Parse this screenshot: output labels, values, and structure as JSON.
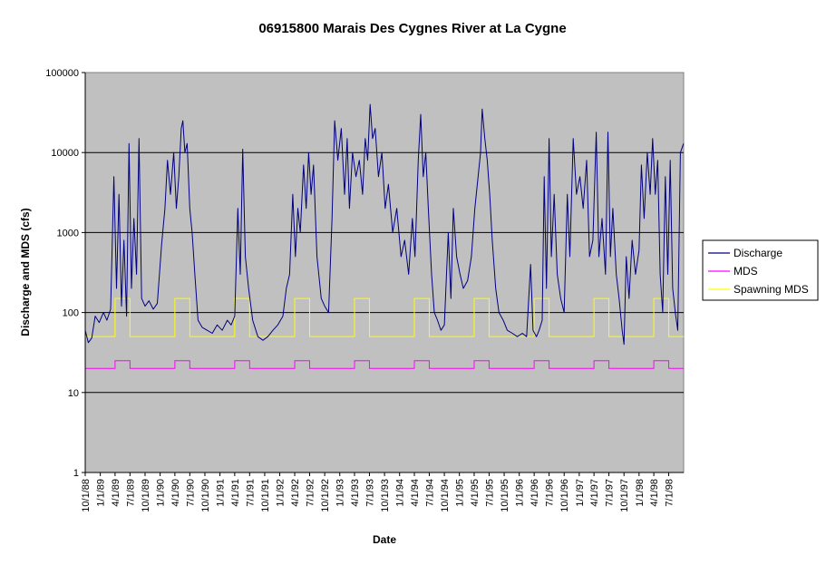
{
  "chart_data": {
    "type": "line",
    "title": "06915800 Marais Des Cygnes River at La Cygne",
    "xlabel": "Date",
    "ylabel": "Discharge and MDS (cfs)",
    "yscale": "log",
    "ylim": [
      1,
      100000
    ],
    "y_ticks": [
      "1",
      "10",
      "100",
      "1000",
      "10000",
      "100000"
    ],
    "x_range": [
      "1988-10-01",
      "1998-09-30"
    ],
    "x_tick_labels": [
      "10/1/88",
      "1/1/89",
      "4/1/89",
      "7/1/89",
      "10/1/89",
      "1/1/90",
      "4/1/90",
      "7/1/90",
      "10/1/90",
      "1/1/91",
      "4/1/91",
      "7/1/91",
      "10/1/91",
      "1/1/92",
      "4/1/92",
      "7/1/92",
      "10/1/92",
      "1/1/93",
      "4/1/93",
      "7/1/93",
      "10/1/93",
      "1/1/94",
      "4/1/94",
      "7/1/94",
      "10/1/94",
      "1/1/95",
      "4/1/95",
      "7/1/95",
      "10/1/95",
      "1/1/96",
      "4/1/96",
      "7/1/96",
      "10/1/96",
      "1/1/97",
      "4/1/97",
      "7/1/97",
      "10/1/97",
      "1/1/98",
      "4/1/98",
      "7/1/98"
    ],
    "grid": "horizontal major",
    "plot_background": "#c0c0c0",
    "legend_position": "right",
    "series": [
      {
        "name": "Discharge",
        "color": "#000080",
        "points": [
          [
            "1988-10-01",
            60
          ],
          [
            "1988-10-20",
            42
          ],
          [
            "1988-11-10",
            48
          ],
          [
            "1988-12-01",
            90
          ],
          [
            "1988-12-25",
            75
          ],
          [
            "1989-01-20",
            100
          ],
          [
            "1989-02-10",
            80
          ],
          [
            "1989-03-05",
            110
          ],
          [
            "1989-03-25",
            5000
          ],
          [
            "1989-04-10",
            200
          ],
          [
            "1989-04-25",
            3000
          ],
          [
            "1989-05-10",
            120
          ],
          [
            "1989-05-25",
            800
          ],
          [
            "1989-06-10",
            90
          ],
          [
            "1989-06-25",
            13000
          ],
          [
            "1989-07-10",
            200
          ],
          [
            "1989-07-25",
            1500
          ],
          [
            "1989-08-10",
            300
          ],
          [
            "1989-08-25",
            15000
          ],
          [
            "1989-09-10",
            150
          ],
          [
            "1989-10-01",
            120
          ],
          [
            "1989-10-25",
            140
          ],
          [
            "1989-11-20",
            110
          ],
          [
            "1989-12-15",
            130
          ],
          [
            "1990-01-10",
            700
          ],
          [
            "1990-01-30",
            2000
          ],
          [
            "1990-02-15",
            8000
          ],
          [
            "1990-03-05",
            3000
          ],
          [
            "1990-03-25",
            10000
          ],
          [
            "1990-04-10",
            2000
          ],
          [
            "1990-04-25",
            5000
          ],
          [
            "1990-05-10",
            20000
          ],
          [
            "1990-05-20",
            25000
          ],
          [
            "1990-06-01",
            10000
          ],
          [
            "1990-06-15",
            13000
          ],
          [
            "1990-07-01",
            2000
          ],
          [
            "1990-07-15",
            1000
          ],
          [
            "1990-08-01",
            300
          ],
          [
            "1990-08-20",
            80
          ],
          [
            "1990-09-15",
            65
          ],
          [
            "1990-10-15",
            60
          ],
          [
            "1990-11-15",
            55
          ],
          [
            "1990-12-15",
            70
          ],
          [
            "1991-01-15",
            60
          ],
          [
            "1991-02-15",
            80
          ],
          [
            "1991-03-10",
            70
          ],
          [
            "1991-04-01",
            90
          ],
          [
            "1991-04-20",
            2000
          ],
          [
            "1991-05-05",
            300
          ],
          [
            "1991-05-20",
            11000
          ],
          [
            "1991-06-05",
            500
          ],
          [
            "1991-06-25",
            200
          ],
          [
            "1991-07-20",
            80
          ],
          [
            "1991-08-20",
            50
          ],
          [
            "1991-09-20",
            45
          ],
          [
            "1991-10-20",
            50
          ],
          [
            "1991-11-20",
            60
          ],
          [
            "1991-12-20",
            70
          ],
          [
            "1992-01-20",
            90
          ],
          [
            "1992-02-10",
            200
          ],
          [
            "1992-03-01",
            300
          ],
          [
            "1992-03-20",
            3000
          ],
          [
            "1992-04-05",
            500
          ],
          [
            "1992-04-20",
            2000
          ],
          [
            "1992-05-05",
            1000
          ],
          [
            "1992-05-25",
            7000
          ],
          [
            "1992-06-10",
            2000
          ],
          [
            "1992-06-25",
            10000
          ],
          [
            "1992-07-10",
            3000
          ],
          [
            "1992-07-25",
            7000
          ],
          [
            "1992-08-15",
            500
          ],
          [
            "1992-09-10",
            150
          ],
          [
            "1992-10-01",
            120
          ],
          [
            "1992-10-25",
            100
          ],
          [
            "1992-11-15",
            1500
          ],
          [
            "1992-12-01",
            25000
          ],
          [
            "1992-12-20",
            8000
          ],
          [
            "1993-01-10",
            20000
          ],
          [
            "1993-01-30",
            3000
          ],
          [
            "1993-02-15",
            15000
          ],
          [
            "1993-03-01",
            2000
          ],
          [
            "1993-03-20",
            10000
          ],
          [
            "1993-04-10",
            5000
          ],
          [
            "1993-04-30",
            8000
          ],
          [
            "1993-05-20",
            3000
          ],
          [
            "1993-06-05",
            15000
          ],
          [
            "1993-06-20",
            8000
          ],
          [
            "1993-07-05",
            40000
          ],
          [
            "1993-07-20",
            15000
          ],
          [
            "1993-08-05",
            20000
          ],
          [
            "1993-08-25",
            5000
          ],
          [
            "1993-09-15",
            10000
          ],
          [
            "1993-10-05",
            2000
          ],
          [
            "1993-10-25",
            4000
          ],
          [
            "1993-11-20",
            1000
          ],
          [
            "1993-12-15",
            2000
          ],
          [
            "1994-01-10",
            500
          ],
          [
            "1994-02-01",
            800
          ],
          [
            "1994-02-25",
            300
          ],
          [
            "1994-03-20",
            1500
          ],
          [
            "1994-04-05",
            500
          ],
          [
            "1994-04-25",
            8000
          ],
          [
            "1994-05-10",
            30000
          ],
          [
            "1994-05-25",
            5000
          ],
          [
            "1994-06-10",
            10000
          ],
          [
            "1994-06-25",
            2000
          ],
          [
            "1994-07-15",
            300
          ],
          [
            "1994-08-01",
            100
          ],
          [
            "1994-08-20",
            80
          ],
          [
            "1994-09-10",
            60
          ],
          [
            "1994-10-01",
            70
          ],
          [
            "1994-10-25",
            1000
          ],
          [
            "1994-11-10",
            150
          ],
          [
            "1994-11-25",
            2000
          ],
          [
            "1994-12-15",
            500
          ],
          [
            "1995-01-05",
            300
          ],
          [
            "1995-01-25",
            200
          ],
          [
            "1995-02-20",
            250
          ],
          [
            "1995-03-15",
            500
          ],
          [
            "1995-04-05",
            2000
          ],
          [
            "1995-04-25",
            5000
          ],
          [
            "1995-05-10",
            10000
          ],
          [
            "1995-05-20",
            35000
          ],
          [
            "1995-06-05",
            15000
          ],
          [
            "1995-06-20",
            8000
          ],
          [
            "1995-07-05",
            3000
          ],
          [
            "1995-07-20",
            800
          ],
          [
            "1995-08-10",
            200
          ],
          [
            "1995-08-30",
            100
          ],
          [
            "1995-09-25",
            80
          ],
          [
            "1995-10-20",
            60
          ],
          [
            "1995-11-20",
            55
          ],
          [
            "1995-12-20",
            50
          ],
          [
            "1996-01-20",
            55
          ],
          [
            "1996-02-15",
            50
          ],
          [
            "1996-03-10",
            400
          ],
          [
            "1996-03-25",
            60
          ],
          [
            "1996-04-15",
            50
          ],
          [
            "1996-05-01",
            60
          ],
          [
            "1996-05-20",
            80
          ],
          [
            "1996-06-01",
            5000
          ],
          [
            "1996-06-15",
            200
          ],
          [
            "1996-07-01",
            15000
          ],
          [
            "1996-07-15",
            500
          ],
          [
            "1996-08-01",
            3000
          ],
          [
            "1996-08-20",
            300
          ],
          [
            "1996-09-10",
            150
          ],
          [
            "1996-10-01",
            100
          ],
          [
            "1996-10-20",
            3000
          ],
          [
            "1996-11-05",
            500
          ],
          [
            "1996-11-25",
            15000
          ],
          [
            "1996-12-15",
            3000
          ],
          [
            "1997-01-05",
            5000
          ],
          [
            "1997-01-25",
            2000
          ],
          [
            "1997-02-15",
            8000
          ],
          [
            "1997-03-05",
            500
          ],
          [
            "1997-03-25",
            800
          ],
          [
            "1997-04-15",
            18000
          ],
          [
            "1997-05-01",
            500
          ],
          [
            "1997-05-20",
            1500
          ],
          [
            "1997-06-10",
            300
          ],
          [
            "1997-06-25",
            18000
          ],
          [
            "1997-07-10",
            500
          ],
          [
            "1997-07-25",
            2000
          ],
          [
            "1997-08-15",
            300
          ],
          [
            "1997-09-01",
            150
          ],
          [
            "1997-09-20",
            60
          ],
          [
            "1997-10-01",
            40
          ],
          [
            "1997-10-15",
            500
          ],
          [
            "1997-11-01",
            150
          ],
          [
            "1997-11-20",
            800
          ],
          [
            "1997-12-10",
            300
          ],
          [
            "1998-01-01",
            600
          ],
          [
            "1998-01-15",
            7000
          ],
          [
            "1998-02-01",
            1500
          ],
          [
            "1998-02-20",
            10000
          ],
          [
            "1998-03-10",
            3000
          ],
          [
            "1998-03-25",
            15000
          ],
          [
            "1998-04-10",
            3000
          ],
          [
            "1998-04-25",
            8000
          ],
          [
            "1998-05-10",
            300
          ],
          [
            "1998-05-25",
            100
          ],
          [
            "1998-06-10",
            5000
          ],
          [
            "1998-06-25",
            300
          ],
          [
            "1998-07-10",
            8000
          ],
          [
            "1998-07-25",
            200
          ],
          [
            "1998-08-10",
            100
          ],
          [
            "1998-08-25",
            60
          ],
          [
            "1998-09-10",
            10000
          ],
          [
            "1998-09-30",
            13000
          ]
        ]
      },
      {
        "name": "MDS",
        "color": "#ff00ff",
        "base_value": 20,
        "seasonal_value": 25,
        "seasonal_window": "4/1 - 6/30 each year"
      },
      {
        "name": "Spawning MDS",
        "color": "#ffff00",
        "base_value": 50,
        "seasonal_value": 150,
        "seasonal_window": "4/1 - 6/30 each year"
      }
    ]
  }
}
